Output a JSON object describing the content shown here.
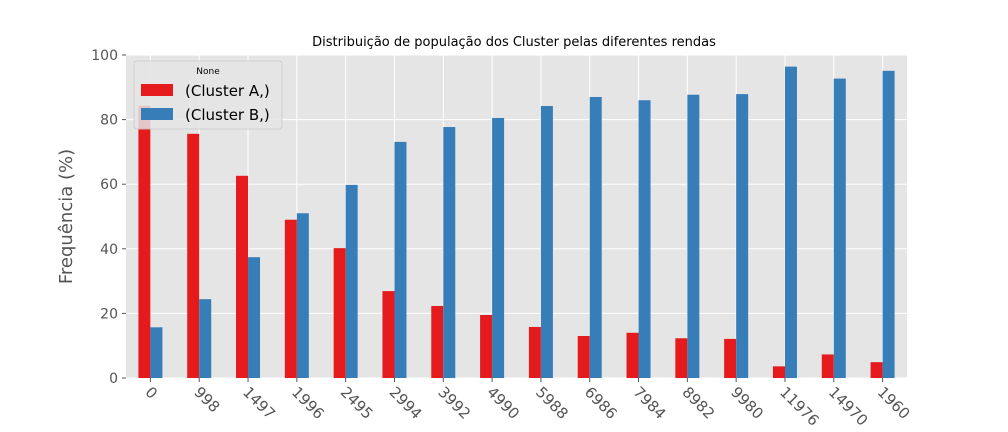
{
  "chart_data": {
    "type": "bar",
    "title": "Distribuição de população dos Cluster pelas diferentes rendas",
    "xlabel": "",
    "ylabel": "Frequência (%)",
    "ylim": [
      0,
      100
    ],
    "yticks": [
      0,
      20,
      40,
      60,
      80,
      100
    ],
    "grid": true,
    "legend": {
      "title": "None",
      "placement": "top-left"
    },
    "categories": [
      "0",
      "998",
      "1497",
      "1996",
      "2495",
      "2994",
      "3992",
      "4990",
      "5988",
      "6986",
      "7984",
      "8982",
      "9980",
      "11976",
      "14970",
      "1960"
    ],
    "series": [
      {
        "name": "(Cluster A,)",
        "color": "#e41a1c",
        "values": [
          84.3,
          75.6,
          62.6,
          49.0,
          40.2,
          26.9,
          22.3,
          19.5,
          15.8,
          13.0,
          14.0,
          12.3,
          12.1,
          3.6,
          7.3,
          4.9
        ]
      },
      {
        "name": "(Cluster B,)",
        "color": "#377eb8",
        "values": [
          15.7,
          24.4,
          37.4,
          51.0,
          59.8,
          73.1,
          77.7,
          80.5,
          84.2,
          87.0,
          86.0,
          87.7,
          87.9,
          96.4,
          92.7,
          95.1
        ]
      }
    ],
    "colors": {
      "plot_background": "#e5e5e5",
      "grid": "#ffffff",
      "tick_text": "#555555"
    }
  }
}
